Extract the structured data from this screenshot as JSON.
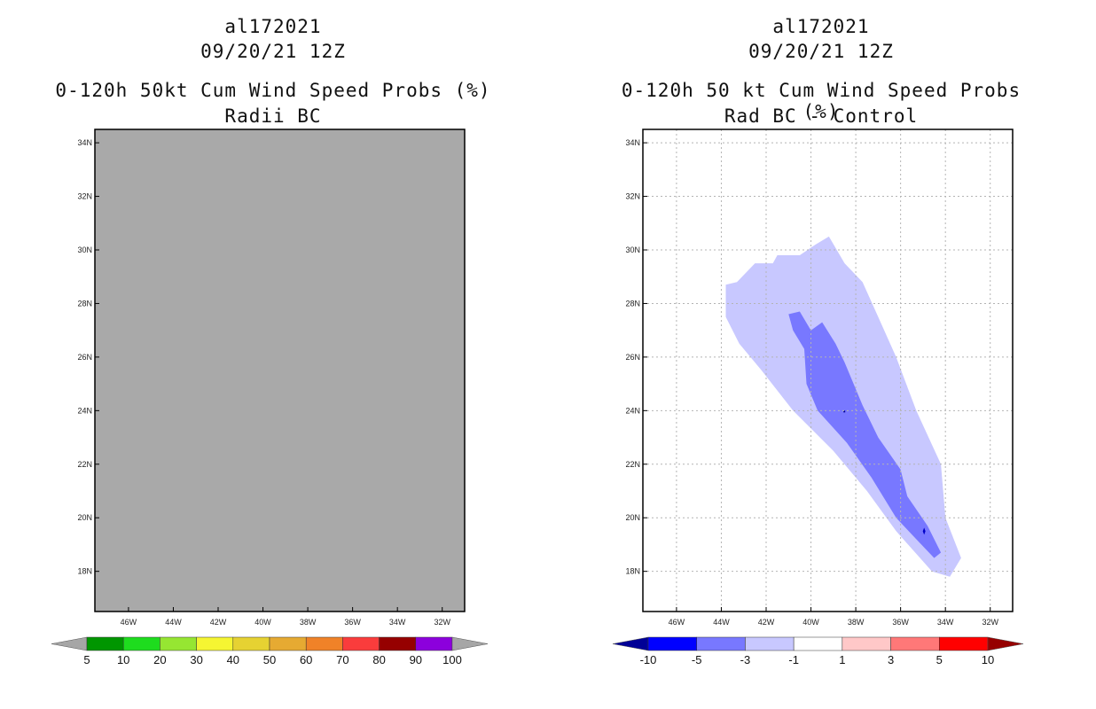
{
  "chart_data": [
    {
      "type": "heatmap",
      "storm_id": "al172021",
      "date": "09/20/21 12Z",
      "title": "0-120h 50kt Cum Wind Speed Probs (%)",
      "subtitle": "Radii BC",
      "x_ticks": [
        "46W",
        "44W",
        "42W",
        "40W",
        "38W",
        "36W",
        "34W",
        "32W"
      ],
      "y_ticks": [
        "34N",
        "32N",
        "30N",
        "28N",
        "26N",
        "24N",
        "22N",
        "20N",
        "18N"
      ],
      "xlim": [
        -47.5,
        -31.0
      ],
      "ylim": [
        16.5,
        34.5
      ],
      "field_fill": "#a9a9a9",
      "grid": false,
      "colorbar": {
        "labels": [
          "5",
          "10",
          "20",
          "30",
          "40",
          "50",
          "60",
          "70",
          "80",
          "90",
          "100"
        ],
        "colors": [
          "#a6a6a6",
          "#009600",
          "#1edc1e",
          "#96e632",
          "#f5f532",
          "#e6d232",
          "#e6aa32",
          "#f08228",
          "#fa3c3c",
          "#960000",
          "#8c00dc",
          "#a6a6a6"
        ]
      }
    },
    {
      "type": "heatmap",
      "storm_id": "al172021",
      "date": "09/20/21 12Z",
      "title": "0-120h 50 kt Cum Wind Speed Probs (%)",
      "subtitle": "Rad BC - Control",
      "x_ticks": [
        "46W",
        "44W",
        "42W",
        "40W",
        "38W",
        "36W",
        "34W",
        "32W"
      ],
      "y_ticks": [
        "34N",
        "32N",
        "30N",
        "28N",
        "26N",
        "24N",
        "22N",
        "20N",
        "18N"
      ],
      "xlim": [
        -47.5,
        -31.0
      ],
      "ylim": [
        16.5,
        34.5
      ],
      "grid": true,
      "contours": [
        {
          "level": "-1 to -3",
          "color": "#c8c8ff",
          "points": [
            [
              -43.8,
              28.7
            ],
            [
              -43.3,
              28.8
            ],
            [
              -42.5,
              29.5
            ],
            [
              -41.7,
              29.5
            ],
            [
              -41.5,
              29.8
            ],
            [
              -40.5,
              29.8
            ],
            [
              -39.8,
              30.2
            ],
            [
              -39.2,
              30.5
            ],
            [
              -38.5,
              29.5
            ],
            [
              -37.7,
              28.8
            ],
            [
              -37.0,
              27.5
            ],
            [
              -36.2,
              26.0
            ],
            [
              -35.3,
              24.0
            ],
            [
              -34.2,
              22.0
            ],
            [
              -34.0,
              20.0
            ],
            [
              -33.3,
              18.5
            ],
            [
              -33.8,
              17.8
            ],
            [
              -34.6,
              18.0
            ],
            [
              -36.2,
              19.5
            ],
            [
              -37.5,
              21.0
            ],
            [
              -39.0,
              22.5
            ],
            [
              -40.8,
              24.0
            ],
            [
              -42.2,
              25.5
            ],
            [
              -43.2,
              26.5
            ],
            [
              -43.8,
              27.5
            ]
          ]
        },
        {
          "level": "-3 to -5",
          "color": "#7878ff",
          "points": [
            [
              -41.0,
              27.6
            ],
            [
              -40.5,
              27.7
            ],
            [
              -40.0,
              27.0
            ],
            [
              -39.5,
              27.3
            ],
            [
              -38.9,
              26.5
            ],
            [
              -38.5,
              25.8
            ],
            [
              -37.7,
              24.2
            ],
            [
              -37.0,
              23.0
            ],
            [
              -36.0,
              21.8
            ],
            [
              -35.7,
              20.8
            ],
            [
              -34.8,
              19.7
            ],
            [
              -34.2,
              18.7
            ],
            [
              -34.5,
              18.5
            ],
            [
              -35.3,
              19.2
            ],
            [
              -36.2,
              20.0
            ],
            [
              -37.3,
              21.5
            ],
            [
              -38.4,
              22.8
            ],
            [
              -39.7,
              24.0
            ],
            [
              -40.2,
              25.0
            ],
            [
              -40.3,
              26.3
            ],
            [
              -40.8,
              27.0
            ]
          ]
        }
      ],
      "colorbar": {
        "labels": [
          "-10",
          "-5",
          "-3",
          "-1",
          "1",
          "3",
          "5",
          "10"
        ],
        "colors": [
          "#000096",
          "#0000ff",
          "#7878ff",
          "#c8c8ff",
          "#ffffff",
          "#ffc8c8",
          "#ff7878",
          "#ff0000",
          "#960000"
        ]
      }
    }
  ]
}
